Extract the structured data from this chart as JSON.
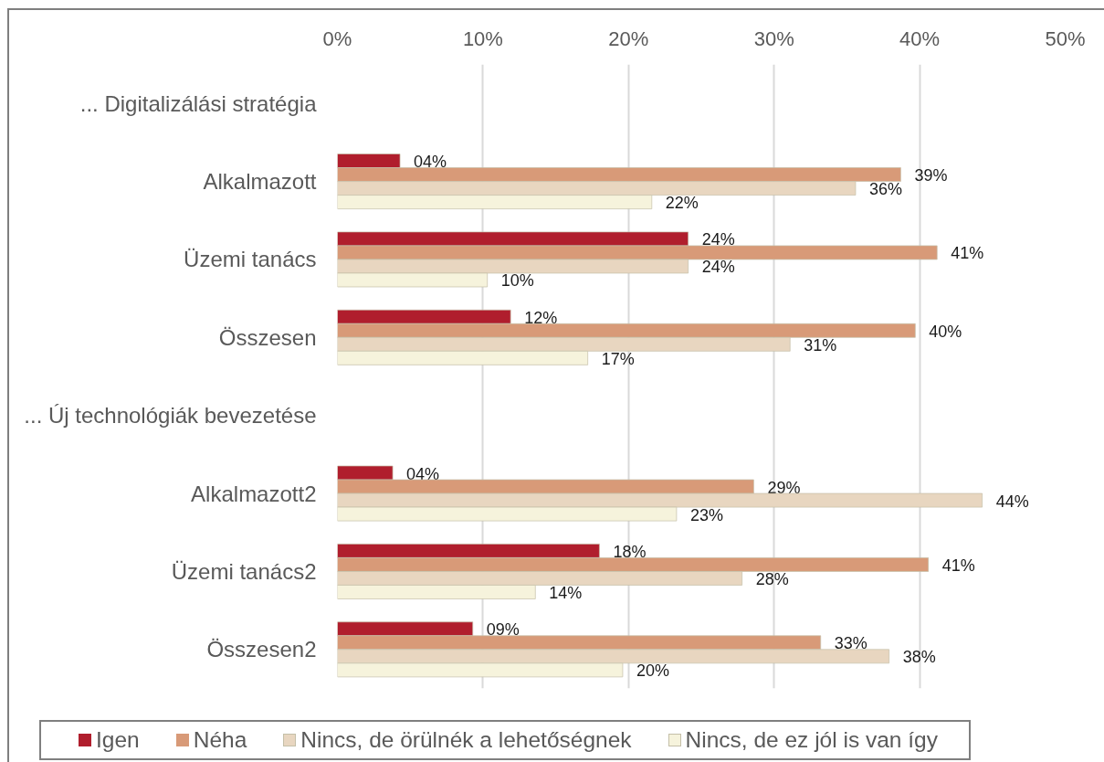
{
  "chart_data": {
    "type": "bar",
    "orientation": "horizontal",
    "categories": [
      "... Digitalizálási stratégia",
      "Alkalmazott",
      "Üzemi tanács",
      "Összesen",
      "... Új technológiák bevezetése",
      "Alkalmazott2",
      "Üzemi tanács2",
      "Összesen2"
    ],
    "series": [
      {
        "name": "Igen",
        "color": "#b01e2d",
        "values": [
          null,
          4.3,
          24.1,
          11.9,
          null,
          3.8,
          18.0,
          9.3
        ],
        "value_labels": [
          null,
          "04%",
          "24%",
          "12%",
          null,
          "04%",
          "18%",
          "09%"
        ]
      },
      {
        "name": "Néha",
        "color": "#d89a78",
        "values": [
          null,
          38.7,
          41.2,
          39.7,
          null,
          28.6,
          40.6,
          33.2
        ],
        "value_labels": [
          null,
          "39%",
          "41%",
          "40%",
          null,
          "29%",
          "41%",
          "33%"
        ]
      },
      {
        "name": "Nincs, de örülnék a lehetőségnek",
        "color": "#e8d6c0",
        "values": [
          null,
          35.6,
          24.1,
          31.1,
          null,
          44.3,
          27.8,
          37.9
        ],
        "value_labels": [
          null,
          "36%",
          "24%",
          "31%",
          null,
          "44%",
          "28%",
          "38%"
        ]
      },
      {
        "name": "Nincs, de ez jól is van így",
        "color": "#f6f3dc",
        "values": [
          null,
          21.6,
          10.3,
          17.2,
          null,
          23.3,
          13.6,
          19.6
        ],
        "value_labels": [
          null,
          "22%",
          "10%",
          "17%",
          null,
          "23%",
          "14%",
          "20%"
        ]
      }
    ],
    "xlim": [
      0,
      50
    ],
    "xticks": [
      {
        "value": 0,
        "label": "0%"
      },
      {
        "value": 10,
        "label": "10%"
      },
      {
        "value": 20,
        "label": "20%"
      },
      {
        "value": 30,
        "label": "30%"
      },
      {
        "value": 40,
        "label": "40%"
      },
      {
        "value": 50,
        "label": "50%"
      }
    ],
    "grid": "x",
    "legend": "bottom"
  }
}
